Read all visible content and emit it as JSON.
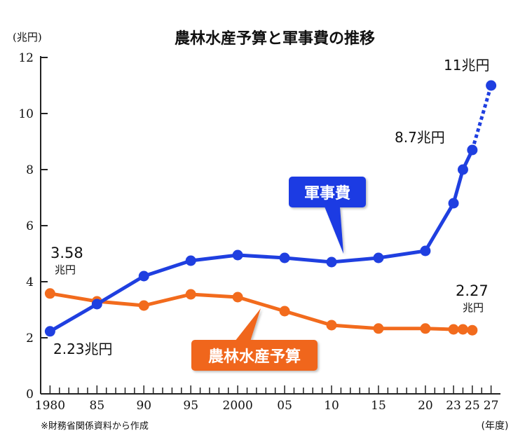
{
  "chart_data": {
    "type": "line",
    "title": "農林水産予算と軍事費の推移",
    "y_unit": "(兆円)",
    "x_unit": "(年度)",
    "source": "※財務省関係資料から作成",
    "ylim": [
      0,
      12
    ],
    "xlim": [
      1979,
      2028
    ],
    "y_ticks": [
      0,
      2,
      4,
      6,
      8,
      10,
      12
    ],
    "x_ticks": [
      {
        "value": 1980,
        "label": "1980"
      },
      {
        "value": 1985,
        "label": "85"
      },
      {
        "value": 1990,
        "label": "90"
      },
      {
        "value": 1995,
        "label": "95"
      },
      {
        "value": 2000,
        "label": "2000"
      },
      {
        "value": 2005,
        "label": "05"
      },
      {
        "value": 2010,
        "label": "10"
      },
      {
        "value": 2015,
        "label": "15"
      },
      {
        "value": 2020,
        "label": "20"
      },
      {
        "value": 2023,
        "label": "23"
      },
      {
        "value": 2025,
        "label": "25"
      },
      {
        "value": 2027,
        "label": "27"
      }
    ],
    "grid": false,
    "series": [
      {
        "name": "軍事費",
        "color": "#1f3fe0",
        "label_box_color": "#1a3be3",
        "x": [
          1980,
          1985,
          1990,
          1995,
          2000,
          2005,
          2010,
          2015,
          2020,
          2023,
          2024,
          2025
        ],
        "y": [
          2.23,
          3.2,
          4.2,
          4.75,
          4.95,
          4.85,
          4.7,
          4.85,
          5.1,
          6.8,
          8.0,
          8.7
        ],
        "projection": {
          "x": [
            2025,
            2027
          ],
          "y": [
            8.7,
            11
          ]
        }
      },
      {
        "name": "農林水産予算",
        "color": "#f26b1d",
        "label_box_color": "#f0661f",
        "x": [
          1980,
          1985,
          1990,
          1995,
          2000,
          2005,
          2010,
          2015,
          2020,
          2023,
          2024,
          2025
        ],
        "y": [
          3.58,
          3.3,
          3.15,
          3.55,
          3.45,
          2.95,
          2.45,
          2.33,
          2.33,
          2.3,
          2.3,
          2.27
        ]
      }
    ],
    "annotations": [
      {
        "id": "mil-1980",
        "text": "2.23兆円"
      },
      {
        "id": "mil-2025",
        "text": "8.7兆円"
      },
      {
        "id": "mil-2027",
        "text": "11兆円"
      },
      {
        "id": "agr-1980-value",
        "text": "3.58"
      },
      {
        "id": "agr-1980-unit",
        "text": "兆円"
      },
      {
        "id": "agr-2025-value",
        "text": "2.27"
      },
      {
        "id": "agr-2025-unit",
        "text": "兆円"
      }
    ]
  }
}
